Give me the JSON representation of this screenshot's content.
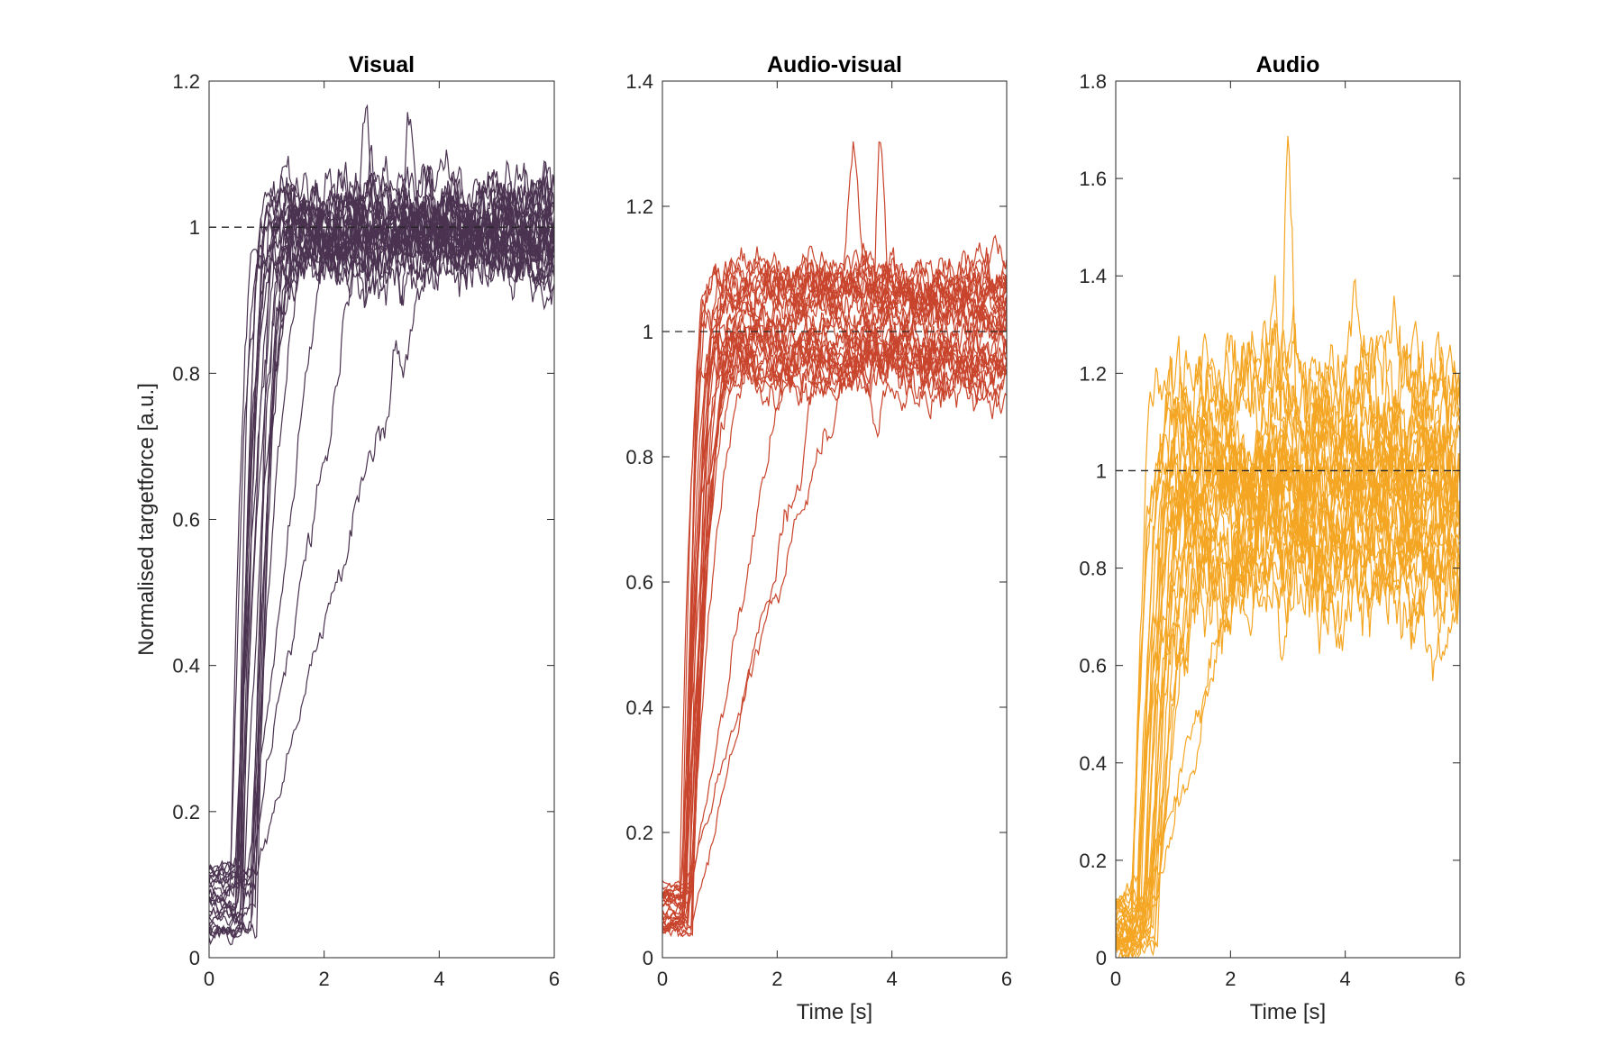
{
  "chart_data": [
    {
      "type": "line",
      "title": "Visual",
      "xlabel": "",
      "ylabel": "Normalised targetforce [a.u.]",
      "xlim": [
        0,
        6
      ],
      "ylim": [
        0,
        1.2
      ],
      "xticks": [
        "0",
        "2",
        "4",
        "6"
      ],
      "yticks": [
        "0",
        "0.2",
        "0.4",
        "0.6",
        "0.8",
        "1",
        "1.2"
      ],
      "color": "#4a3350",
      "reference_line": 1,
      "grid": false,
      "n_traces": 26,
      "trial_profile": {
        "onset_s": [
          0.35,
          0.85
        ],
        "rise_s": [
          0.3,
          1.0
        ],
        "baseline": [
          0.03,
          0.13
        ],
        "plateau": [
          0.95,
          1.04
        ],
        "noise": 0.022,
        "overshoot_peaks": [
          1.18,
          1.15,
          1.08
        ],
        "slow_traces": 3
      }
    },
    {
      "type": "line",
      "title": "Audio-visual",
      "xlabel": "Time [s]",
      "ylabel": "",
      "xlim": [
        0,
        6
      ],
      "ylim": [
        0,
        1.4
      ],
      "xticks": [
        "0",
        "2",
        "4",
        "6"
      ],
      "yticks": [
        "0",
        "0.2",
        "0.4",
        "0.6",
        "0.8",
        "1",
        "1.2",
        "1.4"
      ],
      "color": "#c9442c",
      "reference_line": 1,
      "grid": false,
      "n_traces": 30,
      "trial_profile": {
        "onset_s": [
          0.3,
          0.6
        ],
        "rise_s": [
          0.3,
          1.3
        ],
        "baseline": [
          0.04,
          0.12
        ],
        "plateau": [
          0.92,
          1.08
        ],
        "noise": 0.018,
        "overshoot_peaks": [
          1.28,
          1.27,
          1.16
        ],
        "slow_traces": 3
      }
    },
    {
      "type": "line",
      "title": "Audio",
      "xlabel": "Time [s]",
      "ylabel": "",
      "xlim": [
        0,
        6
      ],
      "ylim": [
        0,
        1.8
      ],
      "xticks": [
        "0",
        "2",
        "4",
        "6"
      ],
      "yticks": [
        "0",
        "0.2",
        "0.4",
        "0.6",
        "0.8",
        "1",
        "1.2",
        "1.4",
        "1.6",
        "1.8"
      ],
      "color": "#f4a623",
      "reference_line": 1,
      "grid": false,
      "n_traces": 30,
      "trial_profile": {
        "onset_s": [
          0.25,
          0.75
        ],
        "rise_s": [
          0.4,
          1.0
        ],
        "baseline": [
          0.0,
          0.12
        ],
        "plateau": [
          0.73,
          1.2
        ],
        "noise": 0.05,
        "overshoot_peaks": [
          1.73,
          1.34,
          1.3
        ],
        "slow_traces": 2
      }
    }
  ]
}
